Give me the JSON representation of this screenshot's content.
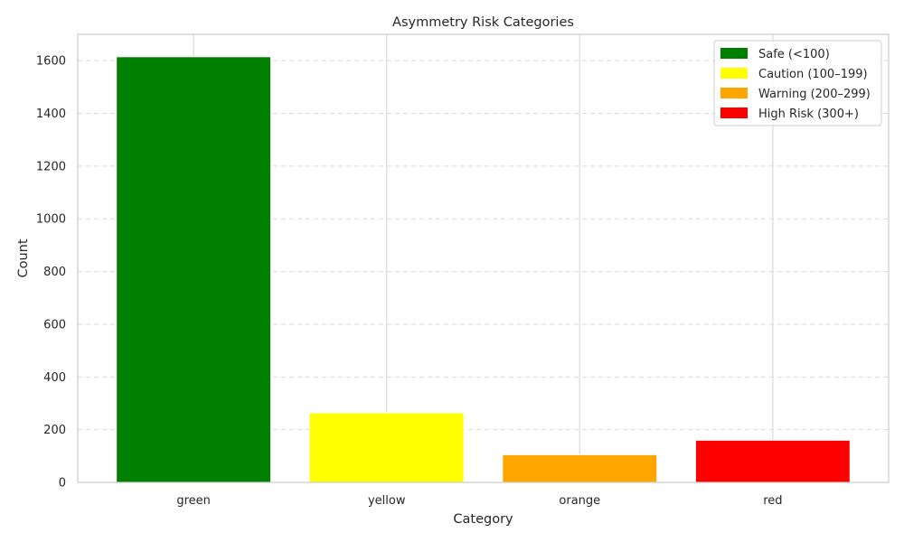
{
  "chart_data": {
    "type": "bar",
    "title": "Asymmetry Risk Categories",
    "xlabel": "Category",
    "ylabel": "Count",
    "categories": [
      "green",
      "yellow",
      "orange",
      "red"
    ],
    "values": [
      1615,
      264,
      105,
      160
    ],
    "bar_colors": [
      "#008000",
      "#ffff00",
      "#ffa500",
      "#ff0000"
    ],
    "ylim": [
      0,
      1700
    ],
    "yticks": [
      0,
      200,
      400,
      600,
      800,
      1000,
      1200,
      1400,
      1600
    ],
    "ytick_labels": [
      "0",
      "200",
      "400",
      "600",
      "800",
      "1000",
      "1200",
      "1400",
      "1600"
    ],
    "grid": {
      "y": "dashed",
      "x": "solid",
      "color": "#d9d9d9"
    },
    "legend": {
      "position": "top-right",
      "entries": [
        {
          "label": "Safe (<100)",
          "color": "#008000"
        },
        {
          "label": "Caution (100–199)",
          "color": "#ffff00"
        },
        {
          "label": "Warning (200–299)",
          "color": "#ffa500"
        },
        {
          "label": "High Risk (300+)",
          "color": "#ff0000"
        }
      ]
    }
  }
}
